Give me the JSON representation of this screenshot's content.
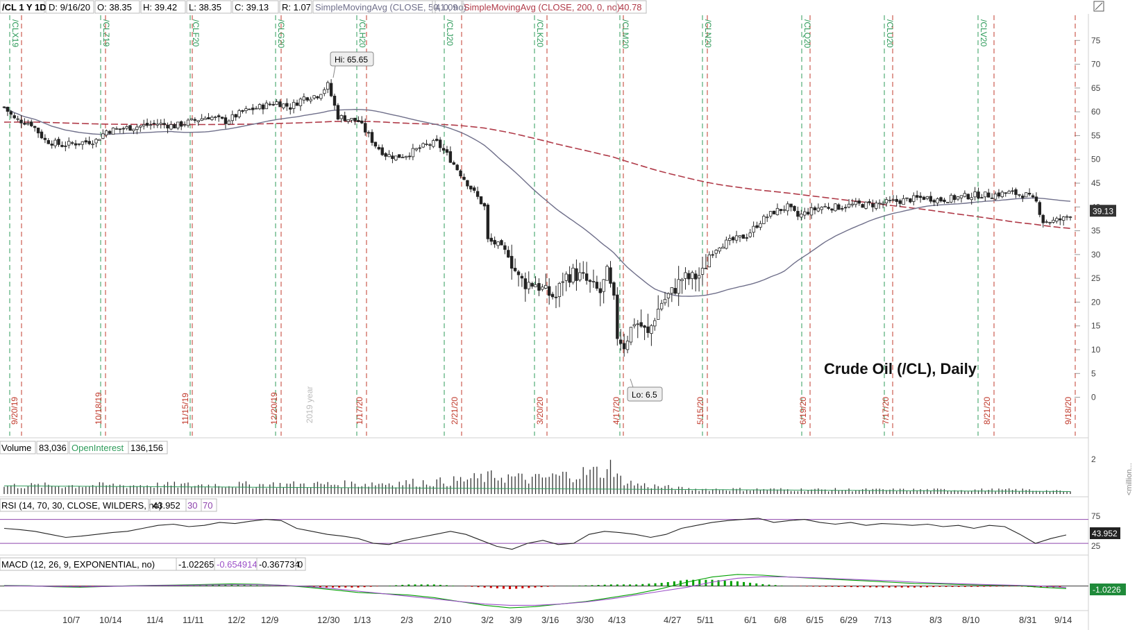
{
  "header": {
    "symbol": "/CL 1 Y 1D",
    "date": "D: 9/16/20",
    "open": "O: 38.35",
    "high": "H: 39.42",
    "low": "L: 38.35",
    "close": "C: 39.13",
    "range": "R: 1.07",
    "sma50_label": "SimpleMovingAvg (CLOSE, 50, 0, no)",
    "sma50_value": "41.09",
    "sma200_label": "SimpleMovingAvg (CLOSE, 200, 0, no)",
    "sma200_value": "40.78"
  },
  "chart_title": "Crude Oil (/CL), Daily",
  "colors": {
    "price_axis_accent": "#444444",
    "sma50": "#6f6f8a",
    "sma200": "#b03a48",
    "expiry_green": "#2e9b5a",
    "expiry_red": "#c0392b",
    "rsi_band": "#8e44ad",
    "macd_green": "#00a000",
    "macd_red": "#d00000",
    "macd_signal": "#9b4fc7",
    "macd_value_bg": "#1f8a3a"
  },
  "annotations": {
    "hi": "Hi: 65.65",
    "lo": "Lo: 6.5",
    "year_marker": "2019 year"
  },
  "volume_panel": {
    "label": "Volume",
    "volume": "83,036",
    "oi_label": "OpenInterest",
    "oi": "136,156",
    "axis_tick": "2",
    "unit": "<million..."
  },
  "rsi_panel": {
    "label": "RSI (14, 70, 30, CLOSE, WILDERS, no)",
    "value": "43.952",
    "low": "30",
    "high": "70",
    "ticks": [
      "75",
      "25"
    ],
    "current": "43.952"
  },
  "macd_panel": {
    "label": "MACD (12, 26, 9, EXPONENTIAL, no)",
    "macd": "-1.02265",
    "signal": "-0.654914",
    "diff": "-0.367734",
    "zero": "0",
    "current": "-1.0226"
  },
  "chart_data": {
    "type": "candlestick",
    "title": "Crude Oil (/CL), Daily",
    "y_ticks": [
      75,
      70,
      65,
      60,
      55,
      50,
      45,
      40,
      35,
      30,
      25,
      20,
      15,
      10,
      5,
      0
    ],
    "ylim": [
      -4,
      80
    ],
    "last_price": "39.13",
    "x_tick_labels": [
      "10/7",
      "10/14",
      "11/4",
      "11/11",
      "12/2",
      "12/9",
      "12/30",
      "1/13",
      "2/3",
      "2/10",
      "3/2",
      "3/9",
      "3/16",
      "3/30",
      "4/13",
      "4/27",
      "5/11",
      "6/1",
      "6/8",
      "6/15",
      "6/29",
      "7/13",
      "8/3",
      "8/10",
      "8/31",
      "9/14"
    ],
    "contract_labels": [
      "/CLX19",
      "/CLZ19",
      "/CLF20",
      "/CLG20",
      "/CLH20",
      "/CLJ20",
      "/CLK20",
      "/CLM20",
      "/CLN20",
      "/CLQ20",
      "/CLU20",
      "/CLV20"
    ],
    "expiry_labels": [
      "9/20/19",
      "10/18/19",
      "11/15/19",
      "12/20/19",
      "1/17/20",
      "2/21/20",
      "3/20/20",
      "4/17/20",
      "5/15/20",
      "6/19/20",
      "7/17/20",
      "8/21/20",
      "9/18/20"
    ],
    "price_path": [
      [
        0,
        61
      ],
      [
        3,
        58.5
      ],
      [
        8,
        57.5
      ],
      [
        12,
        54
      ],
      [
        17,
        53
      ],
      [
        22,
        53.5
      ],
      [
        27,
        54
      ],
      [
        30,
        56
      ],
      [
        35,
        56.5
      ],
      [
        40,
        57
      ],
      [
        45,
        57.5
      ],
      [
        50,
        57
      ],
      [
        55,
        58
      ],
      [
        60,
        59
      ],
      [
        65,
        58
      ],
      [
        70,
        60
      ],
      [
        75,
        61
      ],
      [
        80,
        62
      ],
      [
        84,
        61
      ],
      [
        88,
        63
      ],
      [
        92,
        63.5
      ],
      [
        95,
        65.6
      ],
      [
        98,
        59
      ],
      [
        101,
        58.5
      ],
      [
        104,
        58
      ],
      [
        106,
        56
      ],
      [
        109,
        53
      ],
      [
        112,
        51
      ],
      [
        115,
        50.5
      ],
      [
        118,
        51
      ],
      [
        121,
        52
      ],
      [
        124,
        53
      ],
      [
        127,
        53.5
      ],
      [
        130,
        51
      ],
      [
        133,
        48
      ],
      [
        136,
        45
      ],
      [
        139,
        42
      ],
      [
        141,
        40
      ],
      [
        142,
        33
      ],
      [
        145,
        32
      ],
      [
        148,
        30
      ],
      [
        151,
        25
      ],
      [
        153,
        24
      ],
      [
        156,
        24
      ],
      [
        159,
        22
      ],
      [
        162,
        21
      ],
      [
        164,
        25
      ],
      [
        167,
        26
      ],
      [
        170,
        25
      ],
      [
        173,
        23
      ],
      [
        175,
        22
      ],
      [
        177,
        26
      ],
      [
        179,
        20
      ],
      [
        180,
        13
      ],
      [
        182,
        11
      ],
      [
        185,
        16
      ],
      [
        187,
        15
      ],
      [
        189,
        13
      ],
      [
        191,
        17
      ],
      [
        193,
        20
      ],
      [
        196,
        22
      ],
      [
        199,
        25
      ],
      [
        202,
        25
      ],
      [
        205,
        26
      ],
      [
        207,
        30
      ],
      [
        210,
        32
      ],
      [
        214,
        33
      ],
      [
        218,
        34
      ],
      [
        222,
        37
      ],
      [
        226,
        39
      ],
      [
        230,
        40
      ],
      [
        233,
        38
      ],
      [
        236,
        39
      ],
      [
        240,
        40
      ],
      [
        245,
        40
      ],
      [
        250,
        40.5
      ],
      [
        255,
        40.5
      ],
      [
        260,
        41
      ],
      [
        265,
        41.5
      ],
      [
        270,
        42
      ],
      [
        275,
        41.5
      ],
      [
        280,
        42
      ],
      [
        285,
        42.5
      ],
      [
        290,
        42.5
      ],
      [
        295,
        43
      ],
      [
        300,
        42.5
      ],
      [
        303,
        41
      ],
      [
        305,
        37
      ],
      [
        308,
        37
      ],
      [
        311,
        37.5
      ],
      [
        313,
        38.5
      ]
    ],
    "volume_profile": [
      [
        0,
        0.5
      ],
      [
        60,
        0.55
      ],
      [
        100,
        0.6
      ],
      [
        130,
        0.75
      ],
      [
        145,
        1.1
      ],
      [
        155,
        0.9
      ],
      [
        175,
        1.4
      ],
      [
        185,
        0.6
      ],
      [
        200,
        0.3
      ],
      [
        260,
        0.25
      ],
      [
        300,
        0.25
      ],
      [
        313,
        0.15
      ]
    ],
    "volume_spikes": [
      [
        146,
        1.0
      ],
      [
        178,
        2.1
      ]
    ],
    "volume_ylim": [
      0,
      2.3
    ],
    "rsi_series": [
      55,
      53,
      50,
      45,
      40,
      42,
      45,
      48,
      50,
      55,
      60,
      62,
      58,
      60,
      65,
      63,
      67,
      70,
      68,
      55,
      50,
      45,
      42,
      38,
      30,
      28,
      35,
      40,
      45,
      50,
      45,
      35,
      25,
      20,
      30,
      35,
      28,
      30,
      45,
      50,
      48,
      45,
      40,
      45,
      55,
      60,
      65,
      68,
      70,
      72,
      65,
      68,
      70,
      65,
      62,
      65,
      60,
      63,
      62,
      60,
      62,
      58,
      60,
      55,
      60,
      58,
      45,
      30,
      38,
      44
    ],
    "rsi_ylim": [
      15,
      80
    ],
    "rsi_levels": [
      70,
      30
    ],
    "macd_line_series": [
      0.2,
      0.1,
      -0.3,
      -0.5,
      -0.2,
      0.1,
      0.3,
      0.4,
      0.6,
      0.8,
      0.7,
      0.3,
      -0.5,
      -1.5,
      -2.5,
      -3.0,
      -3.5,
      -4.5,
      -6.0,
      -7.5,
      -8.5,
      -8.0,
      -7.0,
      -6.0,
      -4.5,
      -3.0,
      -1.0,
      1.5,
      3.5,
      4.5,
      4.2,
      3.5,
      3.0,
      2.5,
      2.0,
      1.5,
      1.0,
      0.8,
      0.5,
      0.3,
      0.2,
      -0.5,
      -1.0
    ],
    "macd_signal_series": [
      0.1,
      0.0,
      -0.2,
      -0.3,
      -0.2,
      0.0,
      0.2,
      0.3,
      0.4,
      0.5,
      0.5,
      0.3,
      -0.2,
      -1.0,
      -2.0,
      -3.0,
      -4.0,
      -5.0,
      -6.0,
      -7.0,
      -7.5,
      -7.5,
      -7.0,
      -6.2,
      -5.0,
      -3.5,
      -2.0,
      -0.5,
      1.5,
      3.0,
      3.6,
      3.5,
      3.2,
      2.8,
      2.4,
      2.0,
      1.5,
      1.1,
      0.8,
      0.5,
      0.3,
      0.0,
      -0.6
    ],
    "macd_ylim": [
      -9,
      5
    ]
  }
}
